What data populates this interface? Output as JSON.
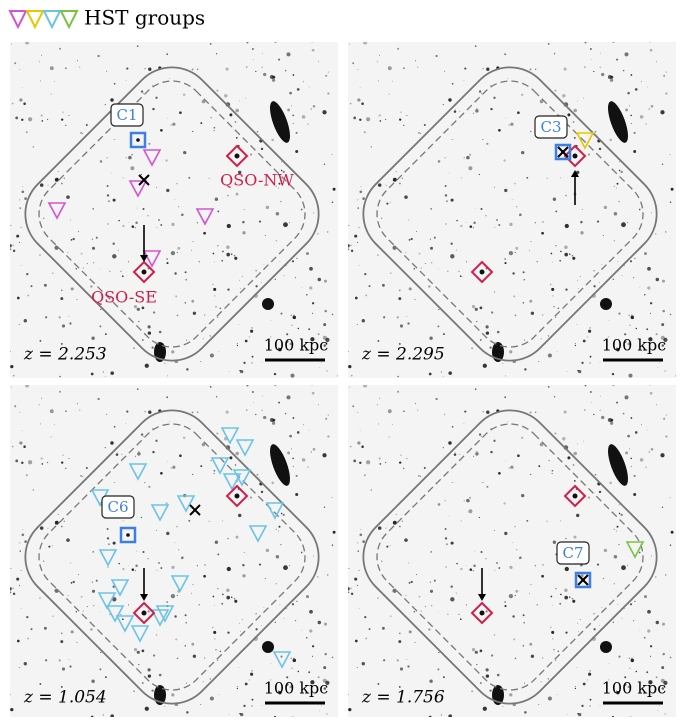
{
  "legend": {
    "label": "HST groups"
  },
  "panels": [
    {
      "redshift": "z = 2.253",
      "scale": "100 kpc",
      "group": "C1",
      "qso_nw": "QSO-NW",
      "qso_se": "QSO-SE"
    },
    {
      "redshift": "z = 2.295",
      "scale": "100 kpc",
      "group": "C3"
    },
    {
      "redshift": "z = 1.054",
      "scale": "100 kpc",
      "group": "C6"
    },
    {
      "redshift": "z = 1.756",
      "scale": "100 kpc",
      "group": "C7"
    }
  ]
}
